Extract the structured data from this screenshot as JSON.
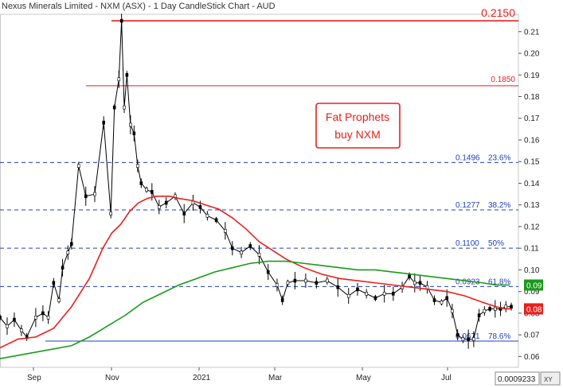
{
  "chart_data": {
    "type": "candlestick",
    "title": "Nexus Minerals Limited - NXM (ASX) - 1 Day CandleStick Chart - AUD",
    "ylim": [
      0.055,
      0.218
    ],
    "y_ticks": [
      "0.21",
      "0.20",
      "0.19",
      "0.18",
      "0.17",
      "0.16",
      "0.15",
      "0.14",
      "0.13",
      "0.12",
      "0.11",
      "0.10",
      "0.09",
      "0.08",
      "0.07",
      "0.06"
    ],
    "x_ticks": [
      "Sep",
      "Nov",
      "2021",
      "Mar",
      "May",
      "Jul"
    ],
    "series": [
      {
        "name": "price",
        "color": "#000000",
        "x": [
          0,
          8,
          16,
          24,
          30,
          40,
          48,
          54,
          60,
          66,
          70,
          76,
          80,
          88,
          96,
          106,
          116,
          124,
          128,
          133,
          136,
          139,
          142,
          146,
          150,
          154,
          158,
          164,
          170,
          178,
          186,
          196,
          206,
          216,
          224,
          232,
          242,
          252,
          260,
          270,
          280,
          290,
          300,
          310,
          316,
          322,
          330,
          342,
          354,
          366,
          378,
          390,
          400,
          410,
          420,
          430,
          440,
          450,
          458,
          464,
          470,
          478,
          486,
          494,
          500,
          506,
          512,
          518,
          524,
          530,
          536,
          542,
          548,
          554,
          560,
          566,
          572
        ],
        "values": [
          0.078,
          0.074,
          0.077,
          0.072,
          0.069,
          0.078,
          0.08,
          0.078,
          0.094,
          0.086,
          0.101,
          0.108,
          0.112,
          0.148,
          0.134,
          0.135,
          0.168,
          0.126,
          0.175,
          0.188,
          0.215,
          0.175,
          0.19,
          0.167,
          0.163,
          0.148,
          0.14,
          0.137,
          0.136,
          0.129,
          0.131,
          0.134,
          0.126,
          0.131,
          0.129,
          0.125,
          0.123,
          0.118,
          0.11,
          0.108,
          0.111,
          0.107,
          0.099,
          0.093,
          0.086,
          0.094,
          0.095,
          0.095,
          0.094,
          0.095,
          0.092,
          0.088,
          0.091,
          0.089,
          0.087,
          0.089,
          0.089,
          0.092,
          0.097,
          0.094,
          0.094,
          0.092,
          0.086,
          0.085,
          0.087,
          0.081,
          0.07,
          0.068,
          0.068,
          0.068,
          0.079,
          0.081,
          0.082,
          0.082,
          0.082,
          0.083,
          0.083
        ]
      },
      {
        "name": "ma-red",
        "color": "#e8201c",
        "x": [
          0,
          20,
          40,
          60,
          80,
          100,
          115,
          125,
          135,
          145,
          155,
          165,
          175,
          190,
          200,
          215,
          230,
          245,
          260,
          275,
          290,
          305,
          320,
          340,
          360,
          380,
          400,
          420,
          440,
          460,
          480,
          500,
          520,
          540,
          555,
          565,
          572
        ],
        "values": [
          0.064,
          0.068,
          0.069,
          0.073,
          0.083,
          0.096,
          0.11,
          0.117,
          0.121,
          0.127,
          0.131,
          0.133,
          0.134,
          0.134,
          0.133,
          0.132,
          0.13,
          0.128,
          0.124,
          0.119,
          0.113,
          0.109,
          0.105,
          0.101,
          0.098,
          0.096,
          0.095,
          0.094,
          0.093,
          0.092,
          0.091,
          0.09,
          0.088,
          0.085,
          0.083,
          0.082,
          0.082
        ]
      },
      {
        "name": "ma-green",
        "color": "#1a9a1a",
        "x": [
          0,
          40,
          80,
          100,
          120,
          140,
          160,
          180,
          200,
          220,
          240,
          260,
          280,
          300,
          320,
          340,
          360,
          380,
          400,
          420,
          440,
          460,
          480,
          500,
          520,
          540,
          555,
          570
        ],
        "values": [
          0.059,
          0.062,
          0.065,
          0.069,
          0.074,
          0.079,
          0.085,
          0.089,
          0.093,
          0.096,
          0.099,
          0.101,
          0.103,
          0.104,
          0.104,
          0.103,
          0.102,
          0.101,
          0.1,
          0.1,
          0.099,
          0.098,
          0.097,
          0.096,
          0.095,
          0.094,
          0.093,
          0.093
        ]
      }
    ],
    "horizontal_lines": [
      {
        "value": 0.215,
        "label": "0.2150",
        "color": "#e8201c"
      },
      {
        "value": 0.185,
        "label": "0.1850",
        "color": "#e8201c"
      },
      {
        "value": 0.1496,
        "label": "0.1496",
        "pct": "23.6%",
        "color": "#1f3fbf",
        "dashed": true
      },
      {
        "value": 0.1277,
        "label": "0.1277",
        "pct": "38.2%",
        "color": "#1f3fbf",
        "dashed": true
      },
      {
        "value": 0.11,
        "label": "0.1100",
        "pct": "50%",
        "color": "#1f3fbf",
        "dashed": true
      },
      {
        "value": 0.0923,
        "label": "0.0923",
        "pct": "61.8%",
        "color": "#1f3fbf",
        "dashed": true
      },
      {
        "value": 0.0671,
        "label": "0.0671",
        "pct": "78.6%",
        "color": "#1f3fbf",
        "dashed": false
      }
    ],
    "axis_badges": [
      {
        "value": 0.093,
        "text": "0.09",
        "color": "#1a9a1a"
      },
      {
        "value": 0.082,
        "text": "0.08",
        "color": "#e8201c"
      }
    ],
    "annotation": {
      "lines": [
        "Fat Prophets",
        "buy NXM"
      ],
      "color": "#e8201c"
    },
    "cursor_readout": "0.0009233",
    "xy_label": "XY"
  }
}
